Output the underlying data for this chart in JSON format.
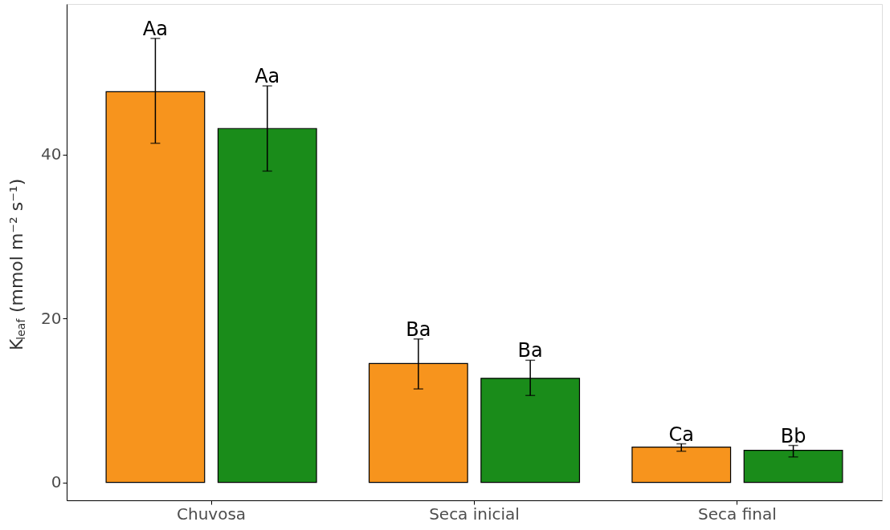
{
  "chart_data": {
    "type": "bar",
    "ylabel": "K$_{leaf}$ (mmol m⁻² s⁻¹)",
    "categories": [
      "Chuvosa",
      "Seca inicial",
      "Seca final"
    ],
    "series": [
      {
        "color": "#f7941d",
        "values": [
          47.7,
          14.5,
          4.3
        ],
        "errors": [
          [
            41.4,
            54.2
          ],
          [
            11.4,
            17.5
          ],
          [
            3.8,
            4.7
          ]
        ]
      },
      {
        "color": "#1a8c1a",
        "values": [
          43.2,
          12.7,
          3.9
        ],
        "errors": [
          [
            38.0,
            48.4
          ],
          [
            10.6,
            14.9
          ],
          [
            3.1,
            4.5
          ]
        ]
      }
    ],
    "ylim": [
      -2.2,
      58.4
    ],
    "yticks": [
      0,
      20,
      40
    ],
    "grid": false,
    "legend": false,
    "annotations": [
      "Aa",
      "Aa",
      "Ba",
      "Ba",
      "Ca",
      "Bb"
    ]
  }
}
